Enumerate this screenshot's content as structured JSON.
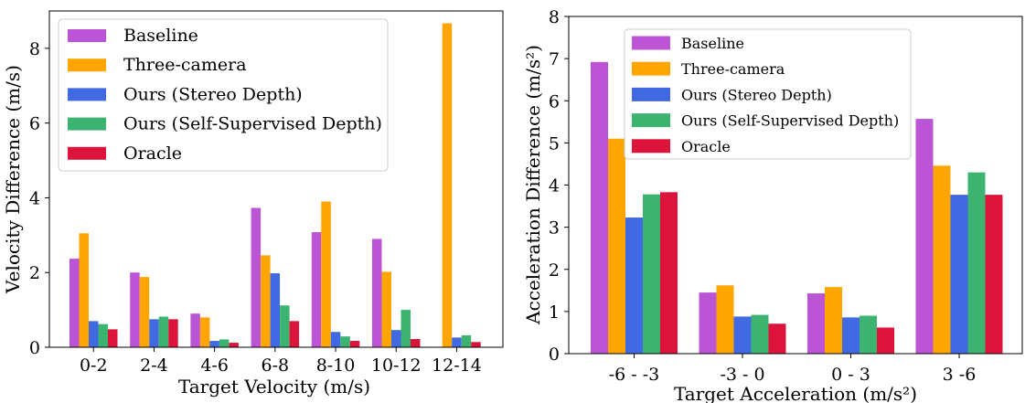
{
  "colors": {
    "Baseline": "#bb55d6",
    "Three-camera": "#ffa500",
    "Ours (Stereo Depth)": "#4169e1",
    "Ours (Self-Supervised Depth)": "#3cb371",
    "Oracle": "#dc143c"
  },
  "chart_data": [
    {
      "type": "bar",
      "xlabel": "Target Velocity (m/s)",
      "ylabel": "Velocity Difference (m/s)",
      "ylim": [
        0,
        9
      ],
      "yticks": [
        0,
        2,
        4,
        6,
        8
      ],
      "legend": "top-left",
      "categories": [
        "0-2",
        "2-4",
        "4-6",
        "6-8",
        "8-10",
        "10-12",
        "12-14"
      ],
      "series": [
        {
          "name": "Baseline",
          "values": [
            2.37,
            2.0,
            0.9,
            3.73,
            3.08,
            2.9,
            0.0
          ]
        },
        {
          "name": "Three-camera",
          "values": [
            3.05,
            1.88,
            0.8,
            2.46,
            3.9,
            2.02,
            8.67
          ]
        },
        {
          "name": "Ours (Stereo Depth)",
          "values": [
            0.7,
            0.75,
            0.17,
            1.98,
            0.41,
            0.46,
            0.26
          ]
        },
        {
          "name": "Ours (Self-Supervised Depth)",
          "values": [
            0.62,
            0.82,
            0.21,
            1.12,
            0.29,
            1.0,
            0.32
          ]
        },
        {
          "name": "Oracle",
          "values": [
            0.48,
            0.75,
            0.12,
            0.7,
            0.17,
            0.22,
            0.14
          ]
        }
      ]
    },
    {
      "type": "bar",
      "xlabel": "Target Acceleration (m/s²)",
      "ylabel": "Acceleration Difference (m/s²)",
      "ylim": [
        0,
        8
      ],
      "yticks": [
        0,
        1,
        2,
        3,
        4,
        5,
        6,
        7,
        8
      ],
      "legend": "top-center",
      "categories": [
        "-6 - -3",
        "-3 - 0",
        "0 - 3",
        "3 -6"
      ],
      "series": [
        {
          "name": "Baseline",
          "values": [
            6.92,
            1.45,
            1.43,
            5.57
          ]
        },
        {
          "name": "Three-camera",
          "values": [
            5.1,
            1.62,
            1.58,
            4.46
          ]
        },
        {
          "name": "Ours (Stereo Depth)",
          "values": [
            3.23,
            0.88,
            0.86,
            3.77
          ]
        },
        {
          "name": "Ours (Self-Supervised Depth)",
          "values": [
            3.78,
            0.92,
            0.9,
            4.3
          ]
        },
        {
          "name": "Oracle",
          "values": [
            3.83,
            0.71,
            0.62,
            3.77
          ]
        }
      ]
    }
  ]
}
